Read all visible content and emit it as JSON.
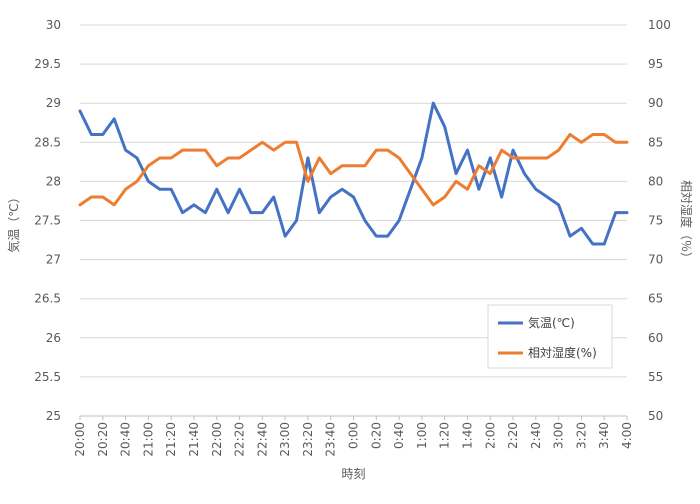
{
  "chart_data": {
    "type": "line",
    "title": "",
    "xlabel": "時刻",
    "ylabel_left": "気温（℃）",
    "ylabel_right": "相対湿度（％）",
    "ylim_left": [
      25,
      30
    ],
    "ylim_right": [
      50,
      100
    ],
    "yticks_left": [
      "25",
      "25.5",
      "26",
      "26.5",
      "27",
      "27.5",
      "28",
      "28.5",
      "29",
      "29.5",
      "30"
    ],
    "yticks_right": [
      "50",
      "55",
      "60",
      "65",
      "70",
      "75",
      "80",
      "85",
      "90",
      "95",
      "100"
    ],
    "x_tick_labels": [
      "20:00",
      "20:20",
      "20:40",
      "21:00",
      "21:20",
      "21:40",
      "22:00",
      "22:20",
      "22:40",
      "23:00",
      "23:20",
      "23:40",
      "0:00",
      "0:20",
      "0:40",
      "1:00",
      "1:20",
      "1:40",
      "2:00",
      "2:20",
      "2:40",
      "3:00",
      "3:20",
      "3:40",
      "4:00"
    ],
    "interval_minutes": 10,
    "gridlines": true,
    "legend_position": "lower-right",
    "series": [
      {
        "name": "気温(℃)",
        "axis": "left",
        "color": "#4472C4",
        "values": [
          28.9,
          28.6,
          28.6,
          28.8,
          28.4,
          28.3,
          28.0,
          27.9,
          27.9,
          27.6,
          27.7,
          27.6,
          27.9,
          27.6,
          27.9,
          27.6,
          27.6,
          27.8,
          27.3,
          27.5,
          28.3,
          27.6,
          27.8,
          27.9,
          27.8,
          27.5,
          27.3,
          27.3,
          27.5,
          27.9,
          28.3,
          29.0,
          28.7,
          28.1,
          28.4,
          27.9,
          28.3,
          27.8,
          28.4,
          28.1,
          27.9,
          27.8,
          27.7,
          27.3,
          27.4,
          27.2,
          27.2,
          27.6,
          27.6
        ]
      },
      {
        "name": "相対湿度(%)",
        "axis": "right",
        "color": "#ED7D31",
        "values": [
          77,
          78,
          78,
          77,
          79,
          80,
          82,
          83,
          83,
          84,
          84,
          84,
          82,
          83,
          83,
          84,
          85,
          84,
          85,
          85,
          80,
          83,
          81,
          82,
          82,
          82,
          84,
          84,
          83,
          81,
          79,
          77,
          78,
          80,
          79,
          82,
          81,
          84,
          83,
          83,
          83,
          83,
          84,
          86,
          85,
          86,
          86,
          85,
          85
        ]
      }
    ]
  }
}
